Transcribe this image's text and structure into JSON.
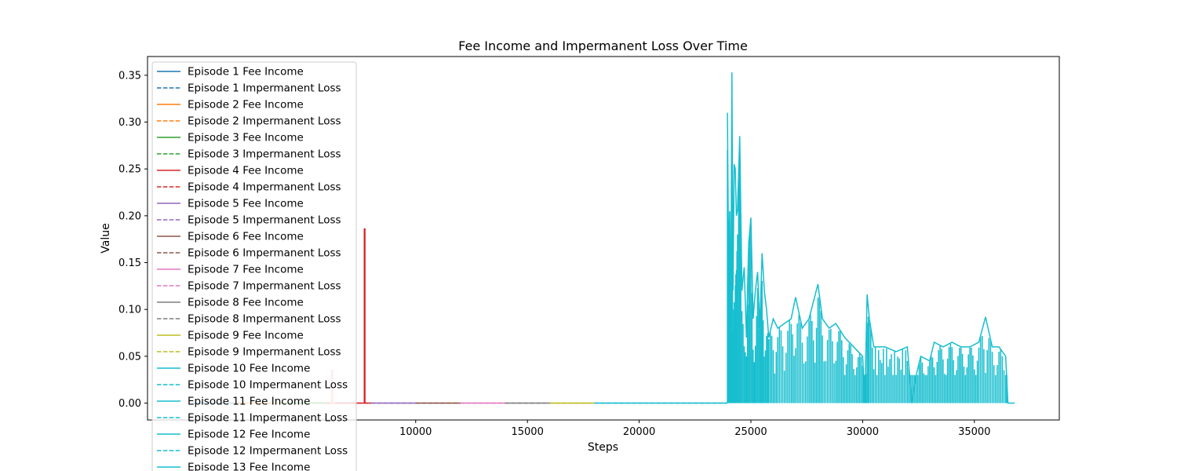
{
  "chart_data": {
    "type": "line",
    "title": "Fee Income and Impermanent Loss Over Time",
    "xlabel": "Steps",
    "ylabel": "Value",
    "xlim": [
      -2000,
      38800
    ],
    "ylim": [
      -0.018,
      0.37
    ],
    "x_ticks": [
      10000,
      15000,
      20000,
      25000,
      30000,
      35000
    ],
    "x_tick_labels": [
      "10000",
      "15000",
      "20000",
      "25000",
      "30000",
      "35000"
    ],
    "y_ticks": [
      0.0,
      0.05,
      0.1,
      0.15,
      0.2,
      0.25,
      0.3,
      0.35
    ],
    "y_tick_labels": [
      "0.00",
      "0.05",
      "0.10",
      "0.15",
      "0.20",
      "0.25",
      "0.30",
      "0.35"
    ],
    "grid": false,
    "legend_position": "upper-left",
    "series": [
      {
        "name": "Episode 1 Fee Income",
        "color": "#1f77b4",
        "dash": false,
        "x": [
          0,
          2000
        ],
        "y": [
          0,
          0
        ]
      },
      {
        "name": "Episode 1 Impermanent Loss",
        "color": "#1f77b4",
        "dash": true,
        "x": [
          0,
          2000
        ],
        "y": [
          0,
          0
        ]
      },
      {
        "name": "Episode 2 Fee Income",
        "color": "#ff7f0e",
        "dash": false,
        "x": [
          2000,
          4000
        ],
        "y": [
          0,
          0
        ]
      },
      {
        "name": "Episode 2 Impermanent Loss",
        "color": "#ff7f0e",
        "dash": true,
        "x": [
          2000,
          4000
        ],
        "y": [
          0,
          0
        ]
      },
      {
        "name": "Episode 3 Fee Income",
        "color": "#2ca02c",
        "dash": false,
        "x": [
          4000,
          6000
        ],
        "y": [
          0,
          0
        ]
      },
      {
        "name": "Episode 3 Impermanent Loss",
        "color": "#2ca02c",
        "dash": true,
        "x": [
          4000,
          6000
        ],
        "y": [
          0,
          0
        ]
      },
      {
        "name": "Episode 4 Fee Income",
        "color": "#d62728",
        "dash": false,
        "x": [
          6000,
          7700,
          7700,
          7730,
          7730,
          8000
        ],
        "y": [
          0,
          0,
          0.186,
          0.186,
          0,
          0
        ]
      },
      {
        "name": "Episode 4 Impermanent Loss",
        "color": "#d62728",
        "dash": true,
        "x": [
          6000,
          8000
        ],
        "y": [
          0,
          0
        ]
      },
      {
        "name": "Episode 5 Fee Income",
        "color": "#9467bd",
        "dash": false,
        "x": [
          8000,
          10000
        ],
        "y": [
          0,
          0
        ]
      },
      {
        "name": "Episode 5 Impermanent Loss",
        "color": "#9467bd",
        "dash": true,
        "x": [
          8000,
          10000
        ],
        "y": [
          0,
          0
        ]
      },
      {
        "name": "Episode 6 Fee Income",
        "color": "#8c564b",
        "dash": false,
        "x": [
          10000,
          12000
        ],
        "y": [
          0,
          0
        ]
      },
      {
        "name": "Episode 6 Impermanent Loss",
        "color": "#8c564b",
        "dash": true,
        "x": [
          10000,
          12000
        ],
        "y": [
          0,
          0
        ]
      },
      {
        "name": "Episode 7 Fee Income",
        "color": "#e377c2",
        "dash": false,
        "x": [
          12000,
          14000
        ],
        "y": [
          0,
          0
        ]
      },
      {
        "name": "Episode 7 Impermanent Loss",
        "color": "#e377c2",
        "dash": true,
        "x": [
          12000,
          14000
        ],
        "y": [
          0,
          0
        ]
      },
      {
        "name": "Episode 8 Fee Income",
        "color": "#7f7f7f",
        "dash": false,
        "x": [
          14000,
          16000
        ],
        "y": [
          0,
          0
        ]
      },
      {
        "name": "Episode 8 Impermanent Loss",
        "color": "#7f7f7f",
        "dash": true,
        "x": [
          14000,
          16000
        ],
        "y": [
          0,
          0
        ]
      },
      {
        "name": "Episode 9 Fee Income",
        "color": "#bcbd22",
        "dash": false,
        "x": [
          16000,
          18000
        ],
        "y": [
          0,
          0
        ]
      },
      {
        "name": "Episode 9 Impermanent Loss",
        "color": "#bcbd22",
        "dash": true,
        "x": [
          16000,
          18000
        ],
        "y": [
          0,
          0
        ]
      },
      {
        "name": "Episode 10 Fee Income",
        "color": "#17becf",
        "dash": false,
        "x": [
          18000,
          23000
        ],
        "y": [
          0,
          0
        ]
      },
      {
        "name": "Episode 10 Impermanent Loss",
        "color": "#17becf",
        "dash": true,
        "x": [
          18000,
          23000
        ],
        "y": [
          0,
          0
        ]
      },
      {
        "name": "Episode 11 Fee Income",
        "color": "#17becf",
        "dash": false,
        "x": [
          23000,
          23900
        ],
        "y": [
          0,
          0
        ]
      },
      {
        "name": "Episode 11 Impermanent Loss",
        "color": "#17becf",
        "dash": true,
        "x": [
          23000,
          23900
        ],
        "y": [
          0,
          0
        ]
      },
      {
        "name": "Episode 12 Fee Income",
        "color": "#17becf",
        "dash": false,
        "x": [
          23900,
          23950
        ],
        "y": [
          0,
          0
        ]
      },
      {
        "name": "Episode 12 Impermanent Loss",
        "color": "#17becf",
        "dash": true,
        "x": [
          23900,
          23950
        ],
        "y": [
          0,
          0
        ]
      },
      {
        "name": "Episode 13 Fee Income",
        "color": "#17becf",
        "dash": false,
        "x": [
          23950,
          24000,
          24050,
          24100,
          24150,
          24200,
          24250,
          24300,
          24350,
          24400,
          24500,
          24600,
          24700,
          24800,
          24900,
          25000,
          25100,
          25200,
          25300,
          25400,
          25500,
          25600,
          25700,
          25800,
          26000,
          26200,
          26500,
          26800,
          27000,
          27300,
          27600,
          28000,
          28200,
          28500,
          28800,
          29200,
          29600,
          30000,
          30100,
          30200,
          30300,
          30500,
          31000,
          31500,
          32000,
          32200,
          32400,
          32600,
          33000,
          33200,
          33600,
          34000,
          34400,
          34800,
          35200,
          35500,
          35800,
          36100,
          36400,
          36500,
          36800
        ],
        "y": [
          0.31,
          0.15,
          0.205,
          0.08,
          0.353,
          0.12,
          0.255,
          0.25,
          0.2,
          0.206,
          0.285,
          0.12,
          0.145,
          0.07,
          0.17,
          0.198,
          0.09,
          0.12,
          0.14,
          0.08,
          0.16,
          0.12,
          0.1,
          0.07,
          0.09,
          0.08,
          0.085,
          0.09,
          0.113,
          0.08,
          0.09,
          0.127,
          0.09,
          0.08,
          0.085,
          0.07,
          0.06,
          0.05,
          0.0,
          0.116,
          0.09,
          0.06,
          0.06,
          0.055,
          0.06,
          0.0,
          0.03,
          0.05,
          0.045,
          0.065,
          0.06,
          0.065,
          0.06,
          0.06,
          0.065,
          0.092,
          0.06,
          0.06,
          0.05,
          0.0,
          0.0
        ]
      },
      {
        "name": "",
        "color": "#ff9896",
        "dash": false,
        "x": [
          6200,
          6250,
          6250,
          6280,
          6280,
          6400
        ],
        "y": [
          0,
          0,
          0.035,
          0.035,
          0,
          0
        ]
      }
    ]
  }
}
